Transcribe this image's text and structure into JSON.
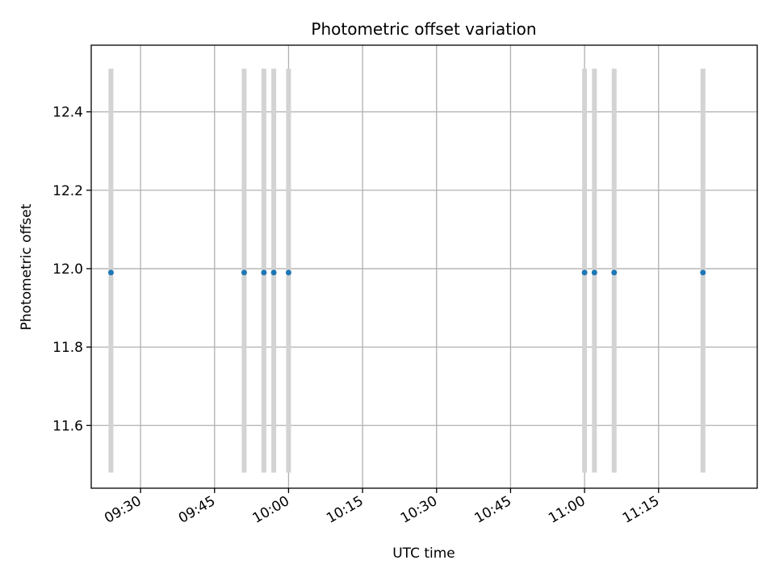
{
  "chart_data": {
    "type": "scatter",
    "title": "Photometric offset variation",
    "xlabel": "UTC time",
    "ylabel": "Photometric offset",
    "x_ticks": [
      "09:30",
      "09:45",
      "10:00",
      "10:15",
      "10:30",
      "10:45",
      "11:00",
      "11:15"
    ],
    "y_ticks": [
      "11.6",
      "11.8",
      "12.0",
      "12.2",
      "12.4"
    ],
    "xlim": [
      "09:20",
      "11:35"
    ],
    "ylim": [
      11.44,
      12.57
    ],
    "grid": true,
    "series": [
      {
        "x": [
          "09:24",
          "09:51",
          "09:55",
          "09:57",
          "10:00",
          "11:00",
          "11:02",
          "11:06",
          "11:24"
        ],
        "y": [
          11.99,
          11.99,
          11.99,
          11.99,
          11.99,
          11.99,
          11.99,
          11.99,
          11.99
        ],
        "error_low": [
          11.48,
          11.48,
          11.48,
          11.48,
          11.48,
          11.48,
          11.48,
          11.48,
          11.48
        ],
        "error_high": [
          12.51,
          12.51,
          12.51,
          12.51,
          12.51,
          12.51,
          12.51,
          12.51,
          12.51
        ]
      }
    ],
    "colors": {
      "point": "#1f77b4",
      "error_bar": "#d3d3d3",
      "grid": "#b0b0b0"
    }
  }
}
